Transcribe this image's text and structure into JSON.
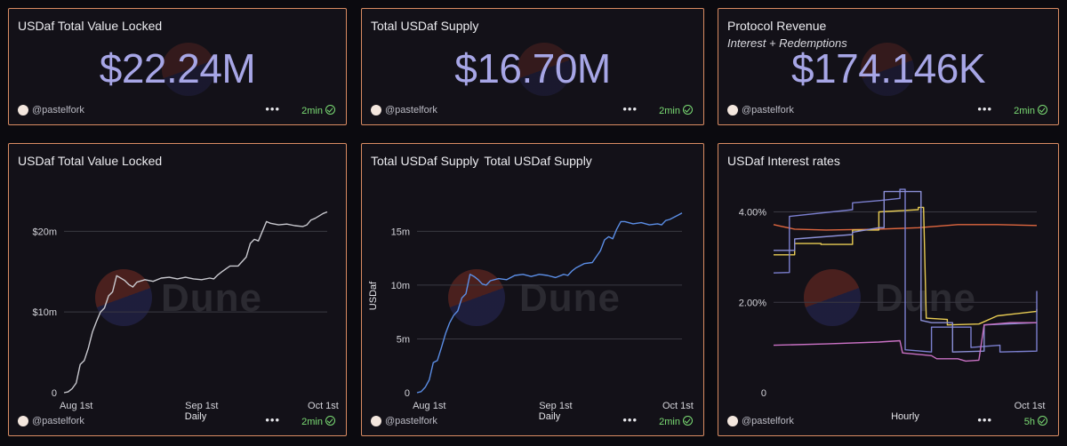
{
  "counters": [
    {
      "title": "USDaf Total Value Locked",
      "subtitle": "",
      "value": "$22.24M",
      "author": "@pastelfork",
      "freshness": "2min"
    },
    {
      "title": "Total USDaf Supply",
      "subtitle": "",
      "value": "$16.70M",
      "author": "@pastelfork",
      "freshness": "2min"
    },
    {
      "title": "Protocol Revenue",
      "subtitle": "Interest + Redemptions",
      "value": "$174.146K",
      "author": "@pastelfork",
      "freshness": "2min"
    }
  ],
  "charts": [
    {
      "title": "USDaf Total Value Locked",
      "title_extra": "",
      "author": "@pastelfork",
      "freshness": "2min",
      "watermark": "Dune"
    },
    {
      "title": "Total USDaf Supply",
      "title_extra": "Total USDaf Supply",
      "author": "@pastelfork",
      "freshness": "2min",
      "watermark": "Dune"
    },
    {
      "title": "USDaf Interest rates",
      "title_extra": "",
      "author": "@pastelfork",
      "freshness": "5h",
      "watermark": "Dune"
    }
  ],
  "colors": {
    "border": "#d98b62",
    "counter_value": "#a7a6e6",
    "fresh": "#7bdc74",
    "tvl_line": "#c9c9cf",
    "supply_line": "#5b8ee6"
  },
  "icons": [
    "avatar-icon",
    "more-dots-icon",
    "check-circle-icon"
  ],
  "chart_data": [
    {
      "type": "line",
      "title": "USDaf Total Value Locked",
      "xlabel": "Daily",
      "ylabel": "",
      "x_ticks": [
        "Aug 1st",
        "Sep 1st",
        "Oct 1st"
      ],
      "y_ticks": [
        "0",
        "$10m",
        "$20m"
      ],
      "ylim": [
        0,
        24000000
      ],
      "xlim": [
        "2025-07-29",
        "2025-10-02"
      ],
      "grid": true,
      "series": [
        {
          "color": "#c9c9cf",
          "points": [
            [
              "2025-07-29",
              0
            ],
            [
              "2025-07-30",
              100000
            ],
            [
              "2025-07-31",
              500000
            ],
            [
              "2025-08-01",
              1200000
            ],
            [
              "2025-08-02",
              3500000
            ],
            [
              "2025-08-03",
              4000000
            ],
            [
              "2025-08-04",
              5500000
            ],
            [
              "2025-08-05",
              7500000
            ],
            [
              "2025-08-06",
              8800000
            ],
            [
              "2025-08-07",
              10000000
            ],
            [
              "2025-08-08",
              10500000
            ],
            [
              "2025-08-09",
              12000000
            ],
            [
              "2025-08-10",
              12500000
            ],
            [
              "2025-08-11",
              14500000
            ],
            [
              "2025-08-12",
              14200000
            ],
            [
              "2025-08-13",
              13900000
            ],
            [
              "2025-08-14",
              13400000
            ],
            [
              "2025-08-15",
              13100000
            ],
            [
              "2025-08-16",
              13700000
            ],
            [
              "2025-08-18",
              14000000
            ],
            [
              "2025-08-20",
              13800000
            ],
            [
              "2025-08-22",
              14200000
            ],
            [
              "2025-08-24",
              14300000
            ],
            [
              "2025-08-26",
              14100000
            ],
            [
              "2025-08-28",
              14300000
            ],
            [
              "2025-08-30",
              14100000
            ],
            [
              "2025-09-01",
              14000000
            ],
            [
              "2025-09-03",
              14200000
            ],
            [
              "2025-09-04",
              14100000
            ],
            [
              "2025-09-05",
              14600000
            ],
            [
              "2025-09-06",
              15000000
            ],
            [
              "2025-09-08",
              15700000
            ],
            [
              "2025-09-10",
              15700000
            ],
            [
              "2025-09-12",
              16800000
            ],
            [
              "2025-09-13",
              18500000
            ],
            [
              "2025-09-14",
              19000000
            ],
            [
              "2025-09-15",
              18800000
            ],
            [
              "2025-09-16",
              20000000
            ],
            [
              "2025-09-17",
              21200000
            ],
            [
              "2025-09-18",
              21000000
            ],
            [
              "2025-09-20",
              20800000
            ],
            [
              "2025-09-22",
              20900000
            ],
            [
              "2025-09-24",
              20700000
            ],
            [
              "2025-09-26",
              20600000
            ],
            [
              "2025-09-27",
              20800000
            ],
            [
              "2025-09-28",
              21400000
            ],
            [
              "2025-09-29",
              21600000
            ],
            [
              "2025-10-01",
              22200000
            ],
            [
              "2025-10-02",
              22400000
            ]
          ]
        }
      ]
    },
    {
      "type": "line",
      "title": "Total USDaf Supply",
      "xlabel": "Daily",
      "ylabel": "USDaf",
      "x_ticks": [
        "Aug 1st",
        "Sep 1st",
        "Oct 1st"
      ],
      "y_ticks": [
        "0",
        "5m",
        "10m",
        "15m"
      ],
      "ylim": [
        0,
        18000000
      ],
      "xlim": [
        "2025-07-29",
        "2025-10-02"
      ],
      "grid": true,
      "series": [
        {
          "color": "#5b8ee6",
          "points": [
            [
              "2025-07-29",
              0
            ],
            [
              "2025-07-30",
              100000
            ],
            [
              "2025-07-31",
              500000
            ],
            [
              "2025-08-01",
              1200000
            ],
            [
              "2025-08-02",
              2800000
            ],
            [
              "2025-08-03",
              3000000
            ],
            [
              "2025-08-04",
              4200000
            ],
            [
              "2025-08-05",
              5500000
            ],
            [
              "2025-08-06",
              6500000
            ],
            [
              "2025-08-07",
              7200000
            ],
            [
              "2025-08-08",
              7600000
            ],
            [
              "2025-08-09",
              8800000
            ],
            [
              "2025-08-10",
              9200000
            ],
            [
              "2025-08-11",
              11000000
            ],
            [
              "2025-08-12",
              10800000
            ],
            [
              "2025-08-13",
              10500000
            ],
            [
              "2025-08-14",
              10100000
            ],
            [
              "2025-08-15",
              10000000
            ],
            [
              "2025-08-16",
              10400000
            ],
            [
              "2025-08-18",
              10600000
            ],
            [
              "2025-08-20",
              10500000
            ],
            [
              "2025-08-22",
              10900000
            ],
            [
              "2025-08-24",
              11000000
            ],
            [
              "2025-08-26",
              10800000
            ],
            [
              "2025-08-28",
              11000000
            ],
            [
              "2025-08-30",
              10900000
            ],
            [
              "2025-09-01",
              10700000
            ],
            [
              "2025-09-03",
              11000000
            ],
            [
              "2025-09-04",
              10900000
            ],
            [
              "2025-09-05",
              11300000
            ],
            [
              "2025-09-06",
              11600000
            ],
            [
              "2025-09-08",
              12000000
            ],
            [
              "2025-09-10",
              12100000
            ],
            [
              "2025-09-12",
              13200000
            ],
            [
              "2025-09-13",
              14200000
            ],
            [
              "2025-09-14",
              14500000
            ],
            [
              "2025-09-15",
              14300000
            ],
            [
              "2025-09-16",
              15200000
            ],
            [
              "2025-09-17",
              15900000
            ],
            [
              "2025-09-18",
              15900000
            ],
            [
              "2025-09-20",
              15700000
            ],
            [
              "2025-09-22",
              15800000
            ],
            [
              "2025-09-24",
              15600000
            ],
            [
              "2025-09-26",
              15700000
            ],
            [
              "2025-09-27",
              15600000
            ],
            [
              "2025-09-28",
              16000000
            ],
            [
              "2025-09-29",
              16100000
            ],
            [
              "2025-10-01",
              16500000
            ],
            [
              "2025-10-02",
              16700000
            ]
          ]
        }
      ]
    },
    {
      "type": "line",
      "title": "USDaf Interest rates",
      "xlabel": "Hourly",
      "ylabel": "",
      "x_ticks": [
        "Oct 1st"
      ],
      "y_ticks": [
        "0",
        "2.00%",
        "4.00%"
      ],
      "ylim": [
        0,
        4.6
      ],
      "xlim": [
        0,
        100
      ],
      "grid": true,
      "series": [
        {
          "color": "#e0673f",
          "points": [
            [
              0,
              3.72
            ],
            [
              3,
              3.68
            ],
            [
              8,
              3.62
            ],
            [
              20,
              3.6
            ],
            [
              40,
              3.62
            ],
            [
              55,
              3.65
            ],
            [
              70,
              3.72
            ],
            [
              85,
              3.72
            ],
            [
              100,
              3.7
            ]
          ]
        },
        {
          "color": "#e8cc53",
          "points": [
            [
              0,
              3.05
            ],
            [
              8,
              3.05
            ],
            [
              8,
              3.3
            ],
            [
              18,
              3.3
            ],
            [
              18,
              3.28
            ],
            [
              30,
              3.28
            ],
            [
              30,
              3.6
            ],
            [
              40,
              3.6
            ],
            [
              40,
              4.0
            ],
            [
              55,
              4.05
            ],
            [
              55,
              4.1
            ],
            [
              57,
              4.1
            ],
            [
              58,
              1.65
            ],
            [
              66,
              1.62
            ],
            [
              66,
              1.5
            ],
            [
              78,
              1.52
            ],
            [
              85,
              1.7
            ],
            [
              100,
              1.8
            ],
            [
              100,
              1.85
            ]
          ]
        },
        {
          "color": "#7b7fcf",
          "points": [
            [
              0,
              2.65
            ],
            [
              6,
              2.66
            ],
            [
              6,
              3.9
            ],
            [
              30,
              4.05
            ],
            [
              30,
              4.2
            ],
            [
              40,
              4.25
            ],
            [
              48,
              4.3
            ],
            [
              48,
              4.5
            ],
            [
              50,
              4.5
            ],
            [
              50,
              0.95
            ],
            [
              60,
              0.9
            ],
            [
              60,
              1.45
            ],
            [
              75,
              1.45
            ],
            [
              75,
              1.0
            ],
            [
              86,
              1.05
            ],
            [
              86,
              0.9
            ],
            [
              100,
              0.92
            ],
            [
              100,
              2.25
            ]
          ]
        },
        {
          "color": "#8b8fd6",
          "points": [
            [
              0,
              3.15
            ],
            [
              8,
              3.15
            ],
            [
              8,
              3.4
            ],
            [
              30,
              3.5
            ],
            [
              30,
              3.55
            ],
            [
              40,
              3.65
            ],
            [
              42,
              3.65
            ],
            [
              42,
              4.45
            ],
            [
              55,
              4.45
            ],
            [
              56,
              4.45
            ],
            [
              56,
              1.6
            ],
            [
              60,
              1.55
            ],
            [
              68,
              1.55
            ],
            [
              68,
              0.9
            ],
            [
              80,
              0.92
            ],
            [
              80,
              1.5
            ],
            [
              100,
              1.55
            ]
          ]
        },
        {
          "color": "#c971c4",
          "points": [
            [
              0,
              1.05
            ],
            [
              20,
              1.08
            ],
            [
              40,
              1.12
            ],
            [
              48,
              1.15
            ],
            [
              49,
              0.88
            ],
            [
              60,
              0.82
            ],
            [
              62,
              0.75
            ],
            [
              70,
              0.75
            ],
            [
              73,
              0.7
            ],
            [
              78,
              0.72
            ],
            [
              80,
              1.5
            ],
            [
              90,
              1.55
            ],
            [
              100,
              1.55
            ]
          ]
        }
      ]
    }
  ]
}
